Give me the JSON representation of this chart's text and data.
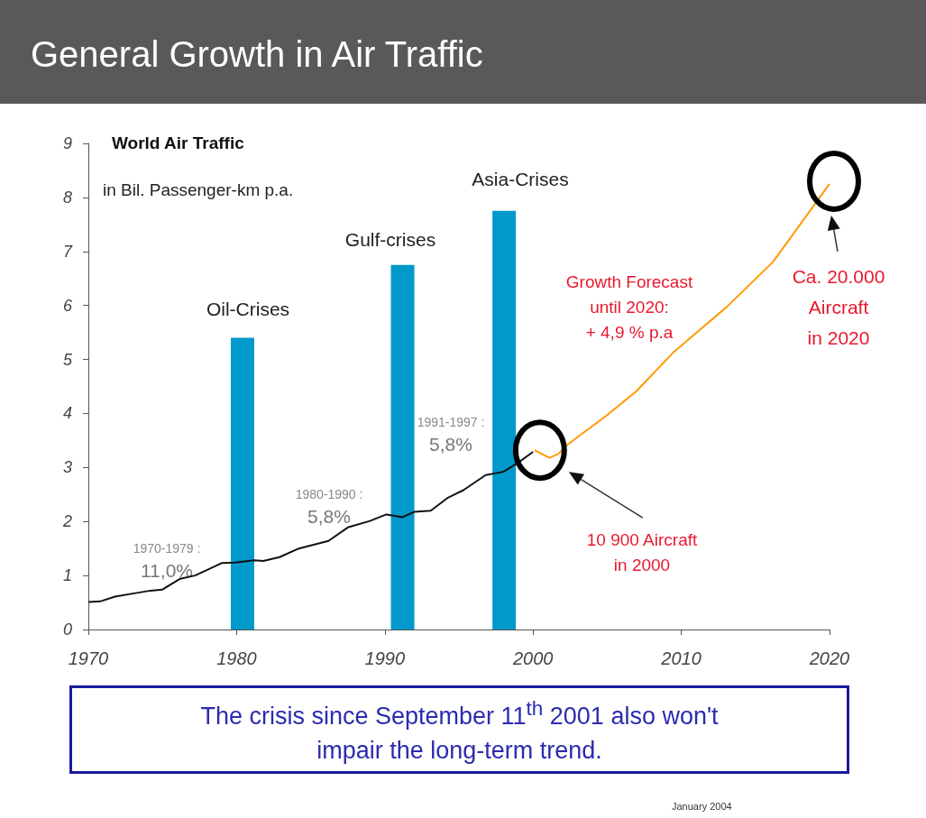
{
  "chart_data": {
    "type": "line",
    "title": "General Growth in Air Traffic",
    "subtitle": "World Air Traffic",
    "ylabel": "in Bil. Passenger-km p.a.",
    "xlim": [
      1970,
      2020
    ],
    "xticks": [
      1970,
      1980,
      1990,
      2000,
      2010,
      2020
    ],
    "ylim": [
      0,
      9
    ],
    "yticks": [
      0,
      1,
      2,
      3,
      4,
      5,
      6,
      7,
      8,
      9
    ],
    "marker": "none",
    "series": [
      {
        "type": "bar",
        "color": "#0099cc",
        "x": [
          1980.4,
          1991.2,
          1998.05
        ],
        "values": [
          5.4,
          6.75,
          7.75
        ]
      },
      {
        "color": "#111111",
        "x": [
          1970,
          1970.8,
          1971.8,
          1973.1,
          1974.2,
          1975,
          1976.2,
          1977.2,
          1979,
          1979.9,
          1981.2,
          1981.8,
          1982.9,
          1984.2,
          1986.2,
          1987.5,
          1989,
          1990.1,
          1991.2,
          1992,
          1993.1,
          1994.2,
          1995.3,
          1996.8,
          1998,
          1999,
          2000
        ],
        "values": [
          0.51,
          0.52,
          0.61,
          0.67,
          0.72,
          0.74,
          0.94,
          1.0,
          1.23,
          1.24,
          1.28,
          1.27,
          1.34,
          1.5,
          1.64,
          1.89,
          2.01,
          2.13,
          2.08,
          2.18,
          2.2,
          2.43,
          2.58,
          2.86,
          2.92,
          3.09,
          3.29
        ]
      },
      {
        "color": "#ff9900",
        "x": [
          2000.1,
          2001.1,
          2001.7,
          2002.3,
          2005,
          2007,
          2009.5,
          2013.1,
          2016.2,
          2020
        ],
        "values": [
          3.32,
          3.18,
          3.25,
          3.42,
          3.97,
          4.42,
          5.14,
          5.98,
          6.81,
          8.25
        ]
      }
    ],
    "annotations": [
      "1970-1979 :\n11,0%",
      "1980-1990 :\n5,8%",
      "1991-1997 :\n5,8%",
      "Oil-Crises",
      "Gulf-crises",
      "Asia-Crises",
      "Growth Forecast\nuntil 2020:\n+ 4,9 % p.a",
      "10 900 Aircraft\nin 2000",
      "Ca. 20.000\nAircraft\nin 2020",
      "The crisis since September 11$^{th}$ 2001 also won't impair  the long-term trend.",
      "January 2004"
    ]
  }
}
